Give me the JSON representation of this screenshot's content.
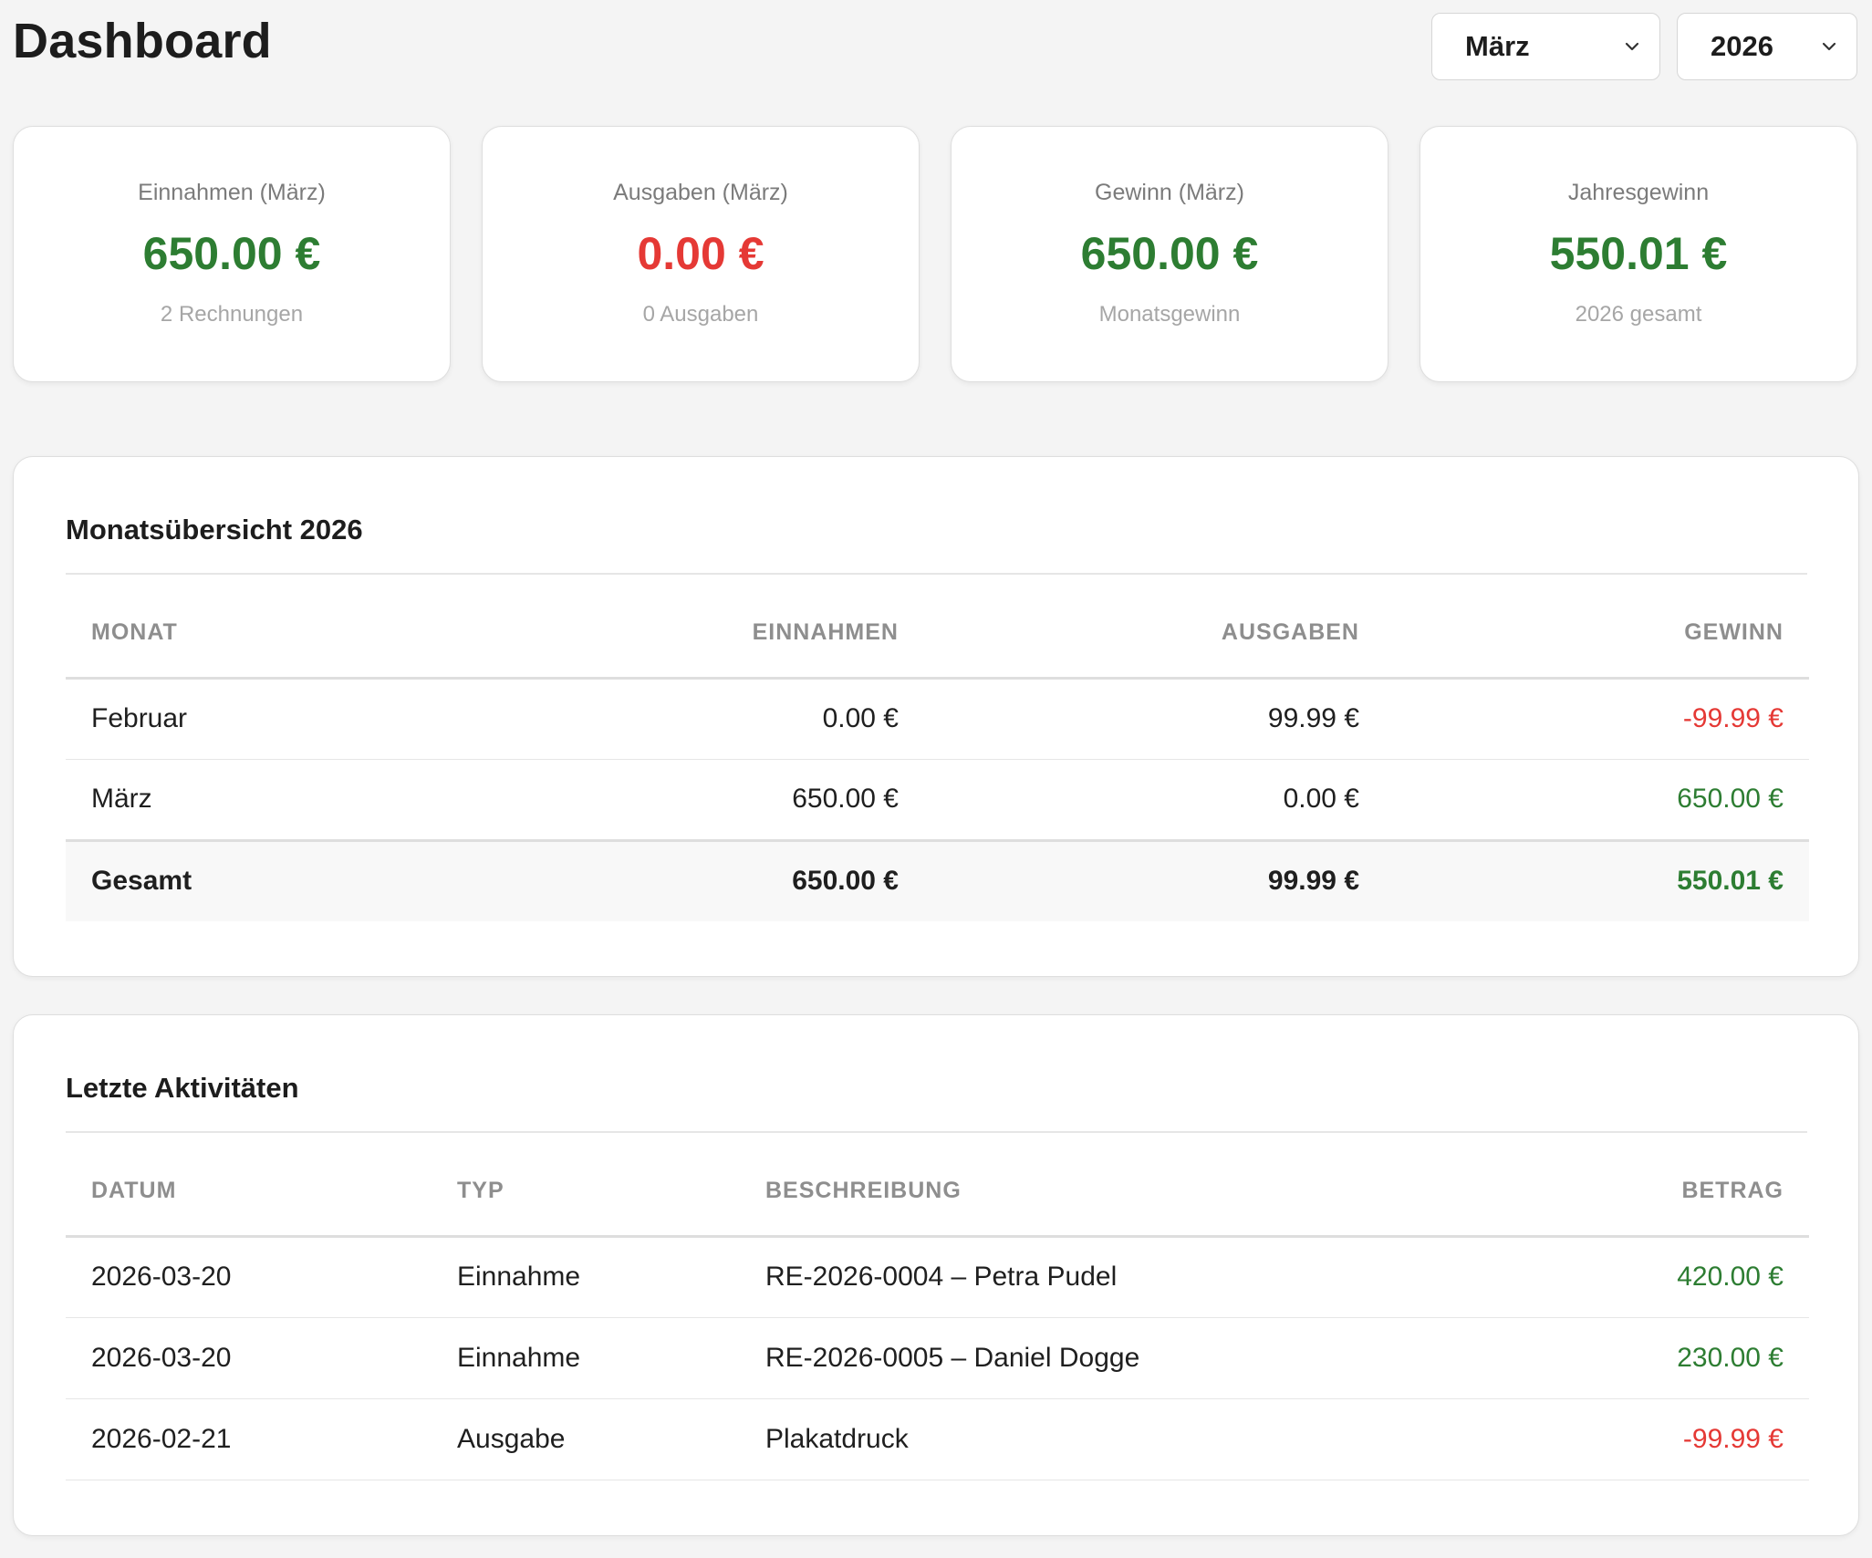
{
  "header": {
    "title": "Dashboard",
    "month_select": {
      "value": "März",
      "icon": "chevron-down-icon"
    },
    "year_select": {
      "value": "2026",
      "icon": "chevron-down-icon"
    }
  },
  "colors": {
    "positive": "#2d7d32",
    "negative": "#e53935"
  },
  "stats": [
    {
      "label": "Einnahmen (März)",
      "value": "650.00 €",
      "sub": "2 Rechnungen",
      "tone": "positive"
    },
    {
      "label": "Ausgaben (März)",
      "value": "0.00 €",
      "sub": "0 Ausgaben",
      "tone": "negative"
    },
    {
      "label": "Gewinn (März)",
      "value": "650.00 €",
      "sub": "Monatsgewinn",
      "tone": "positive"
    },
    {
      "label": "Jahresgewinn",
      "value": "550.01 €",
      "sub": "2026 gesamt",
      "tone": "positive"
    }
  ],
  "monthly": {
    "title": "Monatsübersicht 2026",
    "columns": [
      "MONAT",
      "EINNAHMEN",
      "AUSGABEN",
      "GEWINN"
    ],
    "rows": [
      {
        "month": "Februar",
        "income": "0.00 €",
        "expenses": "99.99 €",
        "profit": "-99.99 €",
        "tone": "negative"
      },
      {
        "month": "März",
        "income": "650.00 €",
        "expenses": "0.00 €",
        "profit": "650.00 €",
        "tone": "positive"
      }
    ],
    "total": {
      "month": "Gesamt",
      "income": "650.00 €",
      "expenses": "99.99 €",
      "profit": "550.01 €",
      "tone": "positive"
    }
  },
  "activity": {
    "title": "Letzte Aktivitäten",
    "columns": [
      "DATUM",
      "TYP",
      "BESCHREIBUNG",
      "BETRAG"
    ],
    "rows": [
      {
        "date": "2026-03-20",
        "type": "Einnahme",
        "description": "RE-2026-0004 – Petra Pudel",
        "amount": "420.00 €",
        "tone": "positive"
      },
      {
        "date": "2026-03-20",
        "type": "Einnahme",
        "description": "RE-2026-0005 – Daniel Dogge",
        "amount": "230.00 €",
        "tone": "positive"
      },
      {
        "date": "2026-02-21",
        "type": "Ausgabe",
        "description": "Plakatdruck",
        "amount": "-99.99 €",
        "tone": "negative"
      }
    ]
  }
}
